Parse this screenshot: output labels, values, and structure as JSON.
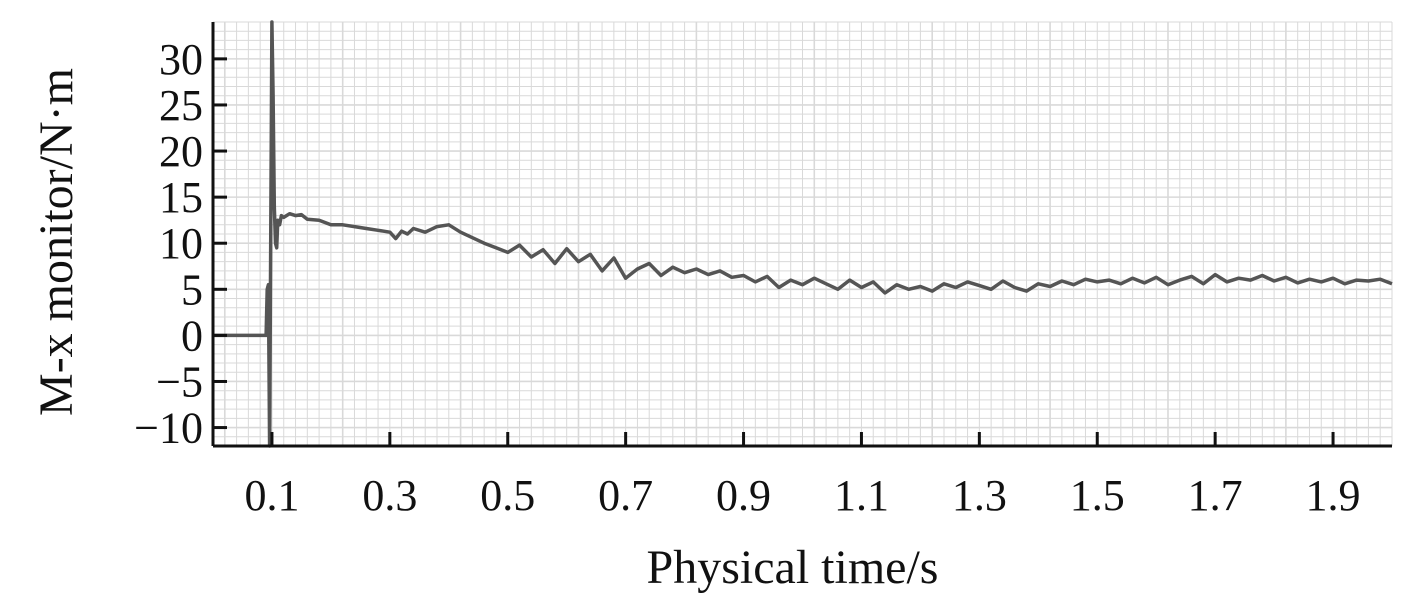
{
  "chart_data": {
    "type": "line",
    "title": "",
    "xlabel": "Physical time/s",
    "ylabel": "M-x monitor/N·m",
    "xlim": [
      0.0,
      2.0
    ],
    "ylim": [
      -12,
      34
    ],
    "xticks": [
      0.1,
      0.3,
      0.5,
      0.7,
      0.9,
      1.1,
      1.3,
      1.5,
      1.7,
      1.9
    ],
    "xtick_labels": [
      "0.1",
      "0.3",
      "0.5",
      "0.7",
      "0.9",
      "1.1",
      "1.3",
      "1.5",
      "1.7",
      "1.9"
    ],
    "yticks": [
      -10,
      -5,
      0,
      5,
      10,
      15,
      20,
      25,
      30
    ],
    "ytick_labels": [
      "−10",
      "−5",
      "0",
      "5",
      "10",
      "15",
      "20",
      "25",
      "30"
    ],
    "grid": true,
    "legend": "none",
    "line_color": "#555555",
    "grid_color": "#d9d9d9",
    "series": [
      {
        "x": [
          0.0,
          0.09,
          0.092,
          0.094,
          0.096,
          0.098,
          0.1,
          0.102,
          0.104,
          0.106,
          0.108,
          0.11,
          0.113,
          0.116,
          0.12,
          0.13,
          0.14,
          0.15,
          0.16,
          0.18,
          0.2,
          0.22,
          0.24,
          0.26,
          0.28,
          0.3,
          0.31,
          0.32,
          0.33,
          0.34,
          0.36,
          0.38,
          0.4,
          0.42,
          0.44,
          0.46,
          0.48,
          0.5,
          0.52,
          0.54,
          0.56,
          0.58,
          0.6,
          0.62,
          0.64,
          0.66,
          0.68,
          0.7,
          0.72,
          0.74,
          0.76,
          0.78,
          0.8,
          0.82,
          0.84,
          0.86,
          0.88,
          0.9,
          0.92,
          0.94,
          0.96,
          0.98,
          1.0,
          1.02,
          1.04,
          1.06,
          1.08,
          1.1,
          1.12,
          1.14,
          1.16,
          1.18,
          1.2,
          1.22,
          1.24,
          1.26,
          1.28,
          1.3,
          1.32,
          1.34,
          1.36,
          1.38,
          1.4,
          1.42,
          1.44,
          1.46,
          1.48,
          1.5,
          1.52,
          1.54,
          1.56,
          1.58,
          1.6,
          1.62,
          1.64,
          1.66,
          1.68,
          1.7,
          1.72,
          1.74,
          1.76,
          1.78,
          1.8,
          1.82,
          1.84,
          1.86,
          1.88,
          1.9,
          1.92,
          1.94,
          1.96,
          1.98,
          2.0
        ],
        "y": [
          0,
          0,
          5,
          5.5,
          -12,
          12,
          34,
          26,
          14,
          10,
          9.5,
          12.5,
          12,
          13,
          12.8,
          13.2,
          13,
          13.1,
          12.6,
          12.5,
          12,
          12,
          11.8,
          11.6,
          11.4,
          11.2,
          10.5,
          11.3,
          11,
          11.6,
          11.2,
          11.8,
          12,
          11.2,
          10.6,
          10,
          9.5,
          9,
          9.8,
          8.5,
          9.3,
          7.8,
          9.4,
          8,
          8.8,
          7,
          8.4,
          6.2,
          7.2,
          7.8,
          6.5,
          7.4,
          6.8,
          7.2,
          6.6,
          7,
          6.3,
          6.5,
          5.8,
          6.4,
          5.2,
          6,
          5.5,
          6.2,
          5.6,
          5,
          6,
          5.2,
          5.8,
          4.6,
          5.5,
          5,
          5.3,
          4.8,
          5.6,
          5.2,
          5.8,
          5.4,
          5,
          5.9,
          5.2,
          4.8,
          5.6,
          5.3,
          5.9,
          5.5,
          6.1,
          5.8,
          6,
          5.6,
          6.2,
          5.7,
          6.3,
          5.5,
          6,
          6.4,
          5.6,
          6.6,
          5.8,
          6.2,
          6,
          6.5,
          5.9,
          6.3,
          5.7,
          6.1,
          5.8,
          6.2,
          5.6,
          6,
          5.9,
          6.1,
          5.6
        ]
      }
    ]
  }
}
